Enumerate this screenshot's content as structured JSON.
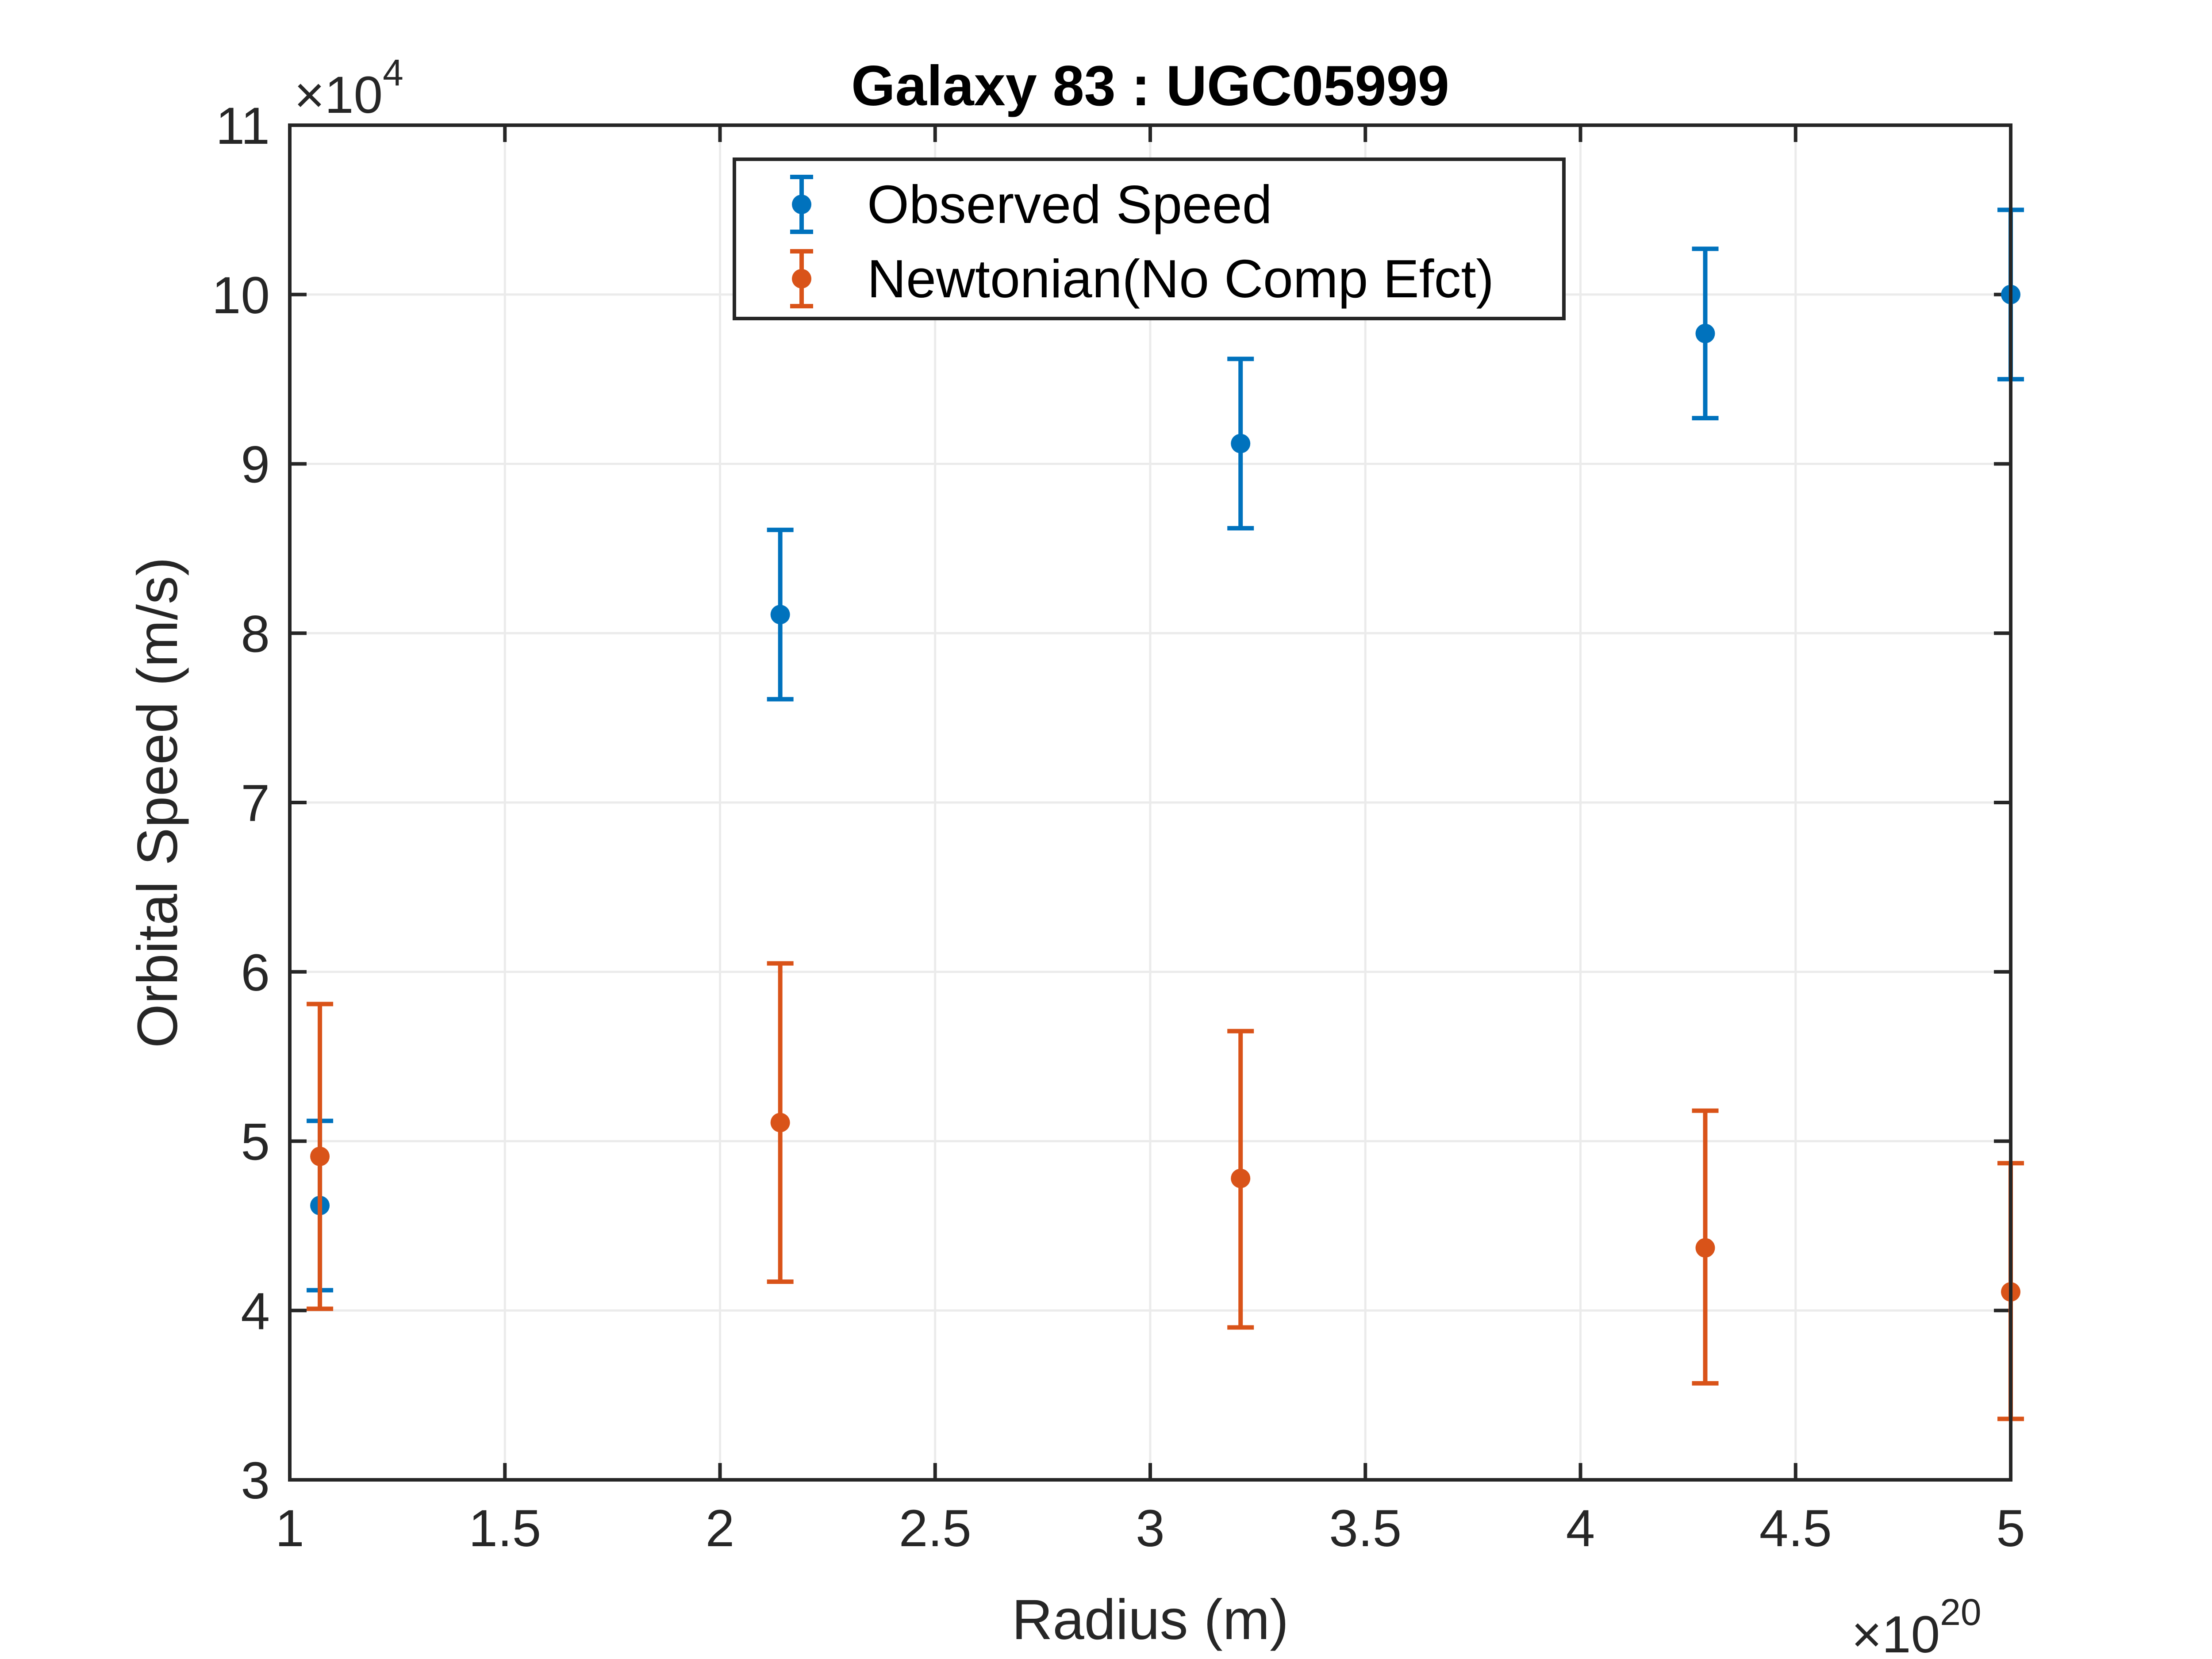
{
  "chart_data": {
    "type": "scatter",
    "title": "Galaxy 83 : UGC05999",
    "xlabel": "Radius (m)",
    "ylabel": "Orbital Speed (m/s)",
    "x_exponent": {
      "base": "×10",
      "power": "20"
    },
    "y_exponent": {
      "base": "×10",
      "power": "4"
    },
    "xlim": [
      1,
      5
    ],
    "ylim": [
      3,
      11
    ],
    "x_ticks": [
      1,
      1.5,
      2,
      2.5,
      3,
      3.5,
      4,
      4.5,
      5
    ],
    "x_tick_labels": [
      "1",
      "1.5",
      "2",
      "2.5",
      "3",
      "3.5",
      "4",
      "4.5",
      "5"
    ],
    "y_ticks": [
      3,
      4,
      5,
      6,
      7,
      8,
      9,
      10,
      11
    ],
    "y_tick_labels": [
      "3",
      "4",
      "5",
      "6",
      "7",
      "8",
      "9",
      "10",
      "11"
    ],
    "grid": true,
    "legend_position": "top-center",
    "series": [
      {
        "name": "Observed Speed",
        "color": "#0072BD",
        "points": [
          {
            "x": 1.07,
            "y": 4.62,
            "err_low": 4.12,
            "err_high": 5.12
          },
          {
            "x": 2.14,
            "y": 8.11,
            "err_low": 7.61,
            "err_high": 8.61
          },
          {
            "x": 3.21,
            "y": 9.12,
            "err_low": 8.62,
            "err_high": 9.62
          },
          {
            "x": 4.29,
            "y": 9.77,
            "err_low": 9.27,
            "err_high": 10.27
          },
          {
            "x": 5.0,
            "y": 10.0,
            "err_low": 9.5,
            "err_high": 10.5
          }
        ]
      },
      {
        "name": "Newtonian(No Comp Efct)",
        "color": "#D95319",
        "points": [
          {
            "x": 1.07,
            "y": 4.91,
            "err_low": 4.01,
            "err_high": 5.81
          },
          {
            "x": 2.14,
            "y": 5.11,
            "err_low": 4.17,
            "err_high": 6.05
          },
          {
            "x": 3.21,
            "y": 4.78,
            "err_low": 3.9,
            "err_high": 5.65
          },
          {
            "x": 4.29,
            "y": 4.37,
            "err_low": 3.57,
            "err_high": 5.18
          },
          {
            "x": 5.0,
            "y": 4.11,
            "err_low": 3.36,
            "err_high": 4.87
          }
        ]
      }
    ]
  }
}
